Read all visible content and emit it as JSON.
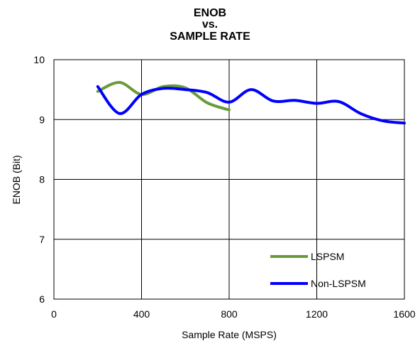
{
  "chart_data": {
    "type": "line",
    "title": [
      "ENOB",
      "vs.",
      "SAMPLE RATE"
    ],
    "xlabel": "Sample Rate (MSPS)",
    "ylabel": "ENOB (Bit)",
    "xlim": [
      0,
      1600
    ],
    "ylim": [
      6,
      10
    ],
    "x_ticks": [
      "0",
      "400",
      "800",
      "1200",
      "1600"
    ],
    "y_ticks": [
      "6",
      "7",
      "8",
      "9",
      "10"
    ],
    "grid": true,
    "legend_position": "bottom-right",
    "series": [
      {
        "name": "LSPSM",
        "color": "#6a9a3a",
        "x": [
          200,
          300,
          400,
          500,
          600,
          700,
          800
        ],
        "y": [
          9.47,
          9.62,
          9.42,
          9.55,
          9.53,
          9.28,
          9.16
        ]
      },
      {
        "name": "Non-LSPSM",
        "color": "#0000ff",
        "x": [
          200,
          300,
          400,
          500,
          600,
          700,
          800,
          900,
          1000,
          1100,
          1200,
          1300,
          1400,
          1500,
          1600
        ],
        "y": [
          9.55,
          9.1,
          9.42,
          9.52,
          9.5,
          9.45,
          9.29,
          9.5,
          9.31,
          9.32,
          9.27,
          9.3,
          9.1,
          8.98,
          8.94
        ]
      }
    ]
  }
}
